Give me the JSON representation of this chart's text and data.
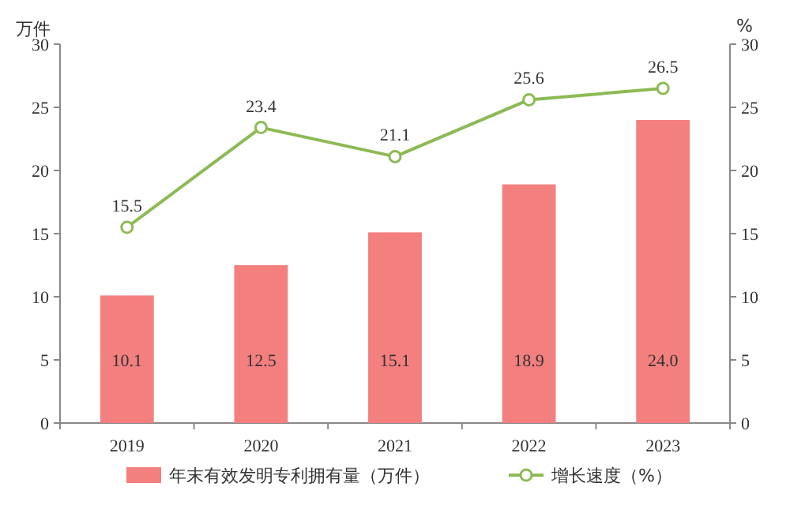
{
  "chart_data": {
    "type": "bar",
    "categories": [
      "2019",
      "2020",
      "2021",
      "2022",
      "2023"
    ],
    "series": [
      {
        "name": "年末有效发明专利拥有量（万件）",
        "color": "#f47f7f",
        "values": [
          10.1,
          12.5,
          15.1,
          18.9,
          24.0
        ],
        "value_labels": [
          "10.1",
          "12.5",
          "15.1",
          "18.9",
          "24.0"
        ]
      },
      {
        "name": "增长速度（%）",
        "type": "line",
        "axis": "y2",
        "marker": "circle",
        "color": "#8cba54",
        "values": [
          15.5,
          23.4,
          21.1,
          25.6,
          26.5
        ],
        "value_labels": [
          "15.5",
          "23.4",
          "21.1",
          "25.6",
          "26.5"
        ]
      }
    ],
    "ylabel": "万件",
    "y2label": "%",
    "ylim": [
      0,
      30
    ],
    "yticks": [
      0,
      5,
      10,
      15,
      20,
      25,
      30
    ],
    "y2lim": [
      0,
      30
    ],
    "y2ticks": [
      0,
      5,
      10,
      15,
      20,
      25,
      30
    ],
    "legend": "bottom"
  }
}
